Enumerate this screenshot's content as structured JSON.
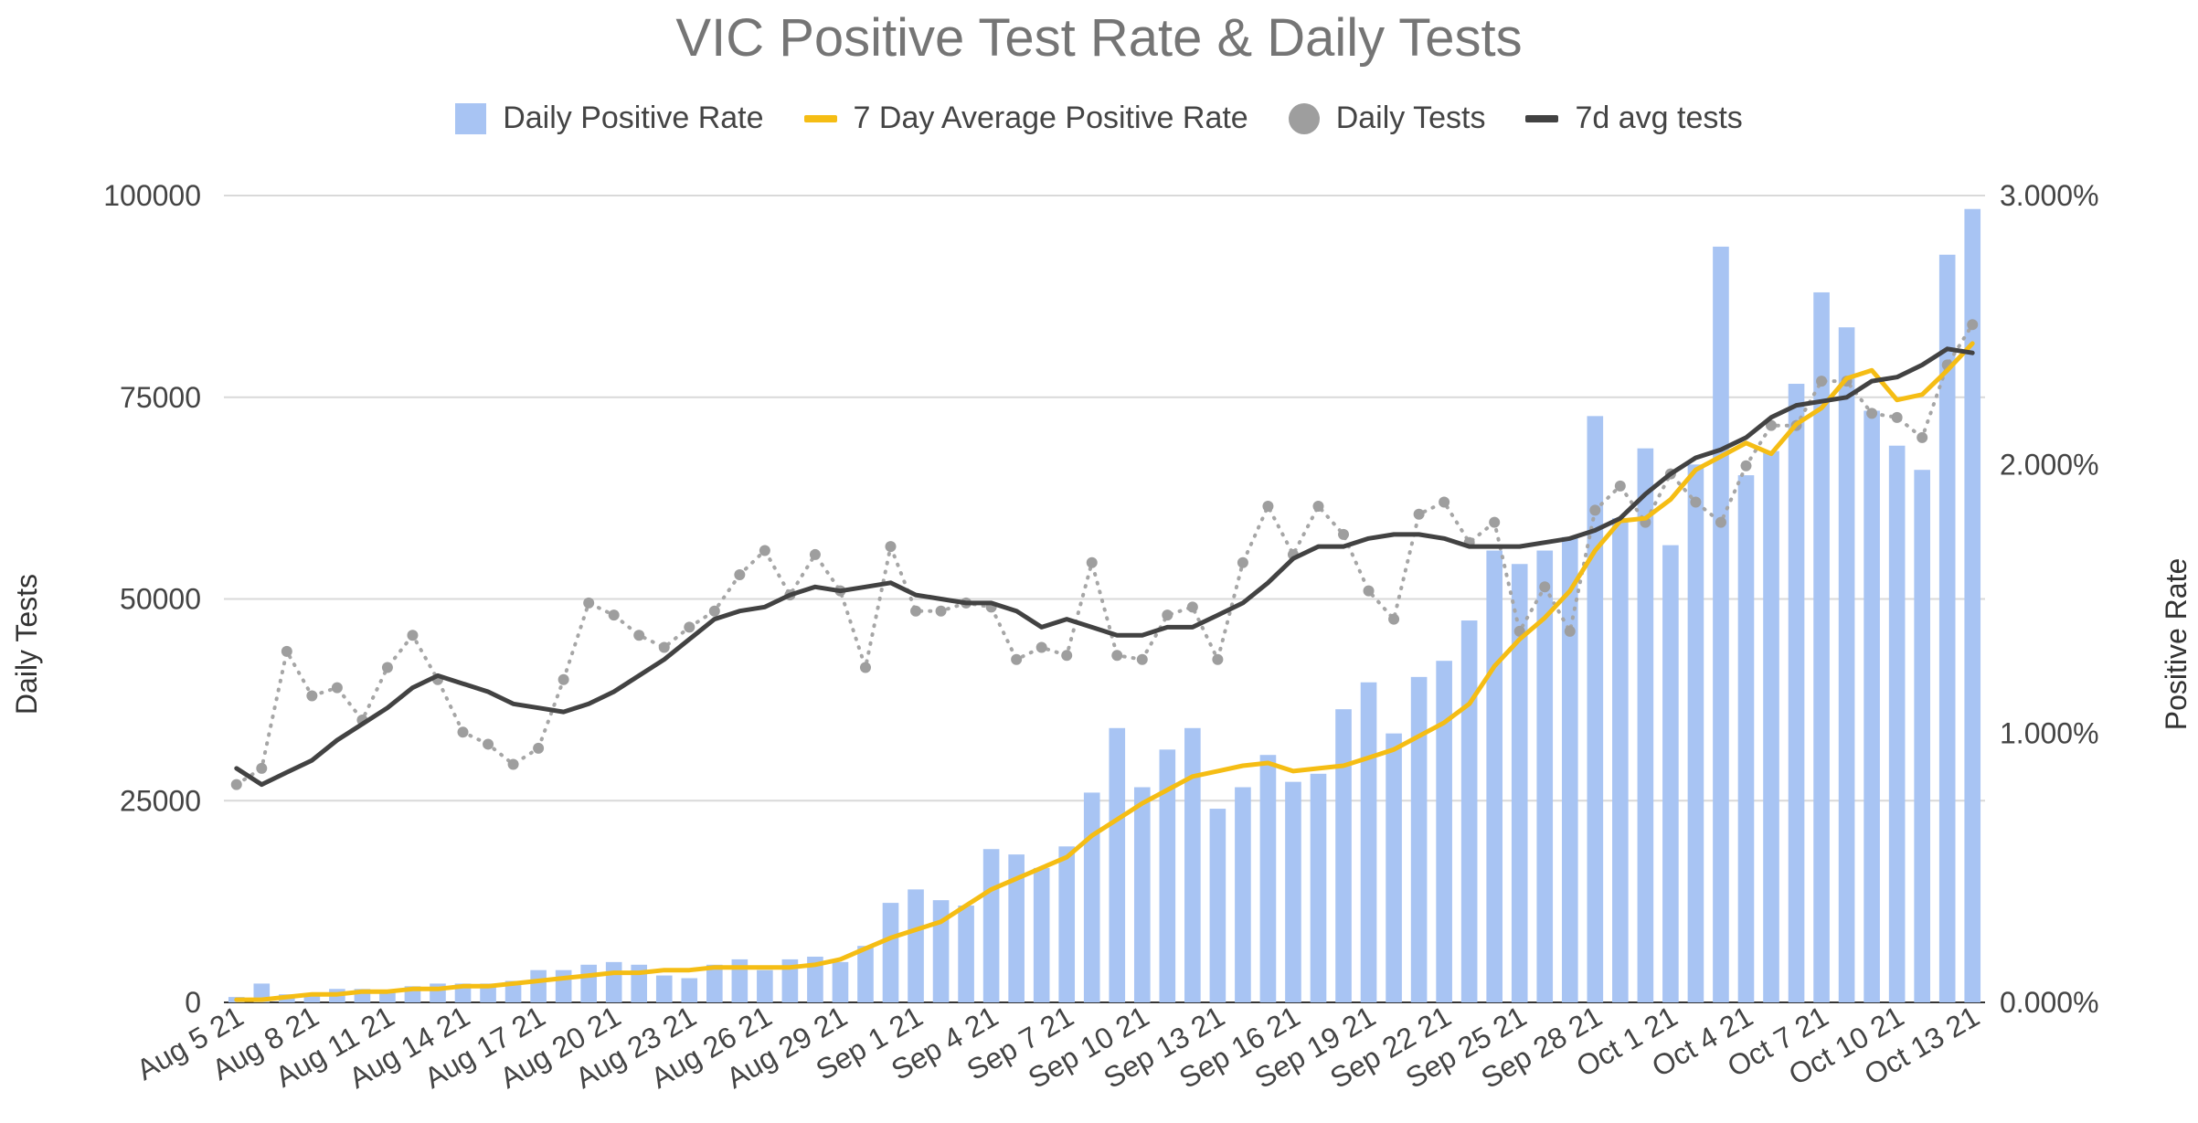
{
  "chart_data": {
    "type": "bar",
    "title": "VIC Positive Test Rate & Daily Tests",
    "ylabel_left": "Daily Tests",
    "ylabel_right": "Positive Rate",
    "ylim_left": [
      0,
      100000
    ],
    "ylim_right": [
      0,
      3
    ],
    "left_ticks": [
      "0",
      "25000",
      "50000",
      "75000",
      "100000"
    ],
    "right_ticks": [
      "0.000%",
      "1.000%",
      "2.000%",
      "3.000%"
    ],
    "x_tick_labels": [
      "Aug 5 21",
      "Aug 8 21",
      "Aug 11 21",
      "Aug 14 21",
      "Aug 17 21",
      "Aug 20 21",
      "Aug 23 21",
      "Aug 26 21",
      "Aug 29 21",
      "Sep 1 21",
      "Sep 4 21",
      "Sep 7 21",
      "Sep 10 21",
      "Sep 13 21",
      "Sep 16 21",
      "Sep 19 21",
      "Sep 22 21",
      "Sep 25 21",
      "Sep 28 21",
      "Oct 1 21",
      "Oct 4 21",
      "Oct 7 21",
      "Oct 10 21",
      "Oct 13 21"
    ],
    "grid": true,
    "legend_position": "top",
    "colors": {
      "bars": "#a8c4f3",
      "avg_rate": "#f5bd14",
      "daily_tests": "#a6a6a6",
      "avg_tests": "#424242",
      "grid": "#d9d9d9",
      "title": "#757575"
    },
    "series": [
      {
        "name": "Daily Positive Rate",
        "type": "bar",
        "axis": "right",
        "values": [
          0.02,
          0.07,
          0.03,
          0.03,
          0.05,
          0.05,
          0.04,
          0.06,
          0.07,
          0.07,
          0.07,
          0.08,
          0.12,
          0.12,
          0.14,
          0.15,
          0.14,
          0.1,
          0.09,
          0.14,
          0.16,
          0.12,
          0.16,
          0.17,
          0.15,
          0.21,
          0.37,
          0.42,
          0.38,
          0.36,
          0.57,
          0.55,
          0.5,
          0.58,
          0.78,
          1.02,
          0.8,
          0.94,
          1.02,
          0.72,
          0.8,
          0.92,
          0.82,
          0.85,
          1.09,
          1.19,
          1.0,
          1.21,
          1.27,
          1.42,
          1.68,
          1.63,
          1.68,
          1.73,
          2.18,
          1.8,
          2.06,
          1.7,
          2.0,
          2.81,
          1.96,
          2.05,
          2.3,
          2.64,
          2.51,
          2.2,
          2.07,
          1.98,
          2.78,
          2.95
        ]
      },
      {
        "name": "7 Day Average Positive Rate",
        "type": "line",
        "axis": "right",
        "values": [
          0.01,
          0.01,
          0.02,
          0.03,
          0.03,
          0.04,
          0.04,
          0.05,
          0.05,
          0.06,
          0.06,
          0.07,
          0.08,
          0.09,
          0.1,
          0.11,
          0.11,
          0.12,
          0.12,
          0.13,
          0.13,
          0.13,
          0.13,
          0.14,
          0.16,
          0.2,
          0.24,
          0.27,
          0.3,
          0.36,
          0.42,
          0.46,
          0.5,
          0.54,
          0.62,
          0.68,
          0.74,
          0.79,
          0.84,
          0.86,
          0.88,
          0.89,
          0.86,
          0.87,
          0.88,
          0.91,
          0.94,
          0.99,
          1.04,
          1.11,
          1.25,
          1.35,
          1.43,
          1.53,
          1.68,
          1.79,
          1.8,
          1.87,
          1.98,
          2.03,
          2.08,
          2.04,
          2.15,
          2.21,
          2.32,
          2.35,
          2.24,
          2.26,
          2.35,
          2.45
        ]
      },
      {
        "name": "Daily Tests",
        "type": "dotted-line",
        "axis": "left",
        "values": [
          27000,
          29000,
          43500,
          38000,
          39000,
          35000,
          41500,
          45500,
          40000,
          33500,
          32000,
          29500,
          31500,
          40000,
          49500,
          48000,
          45500,
          44000,
          46500,
          48500,
          53000,
          56000,
          50500,
          55500,
          51000,
          41500,
          56500,
          48500,
          48500,
          49500,
          49000,
          42500,
          44000,
          43000,
          54500,
          43000,
          42500,
          48000,
          49000,
          42500,
          54500,
          61500,
          55500,
          61500,
          58000,
          51000,
          47500,
          60500,
          62000,
          57000,
          59500,
          46000,
          51500,
          46000,
          61000,
          64000,
          59500,
          65500,
          62000,
          59500,
          66500,
          71500,
          71500,
          77000,
          77000,
          73000,
          72500,
          70000,
          79000,
          84000
        ]
      },
      {
        "name": "7d avg tests",
        "type": "line",
        "axis": "left",
        "values": [
          29000,
          27000,
          28500,
          30000,
          32500,
          34500,
          36500,
          39000,
          40500,
          39500,
          38500,
          37000,
          36500,
          36000,
          37000,
          38500,
          40500,
          42500,
          45000,
          47500,
          48500,
          49000,
          50500,
          51500,
          51000,
          51500,
          52000,
          50500,
          50000,
          49500,
          49500,
          48500,
          46500,
          47500,
          46500,
          45500,
          45500,
          46500,
          46500,
          48000,
          49500,
          52000,
          55000,
          56500,
          56500,
          57500,
          58000,
          58000,
          57500,
          56500,
          56500,
          56500,
          57000,
          57500,
          58500,
          60000,
          63000,
          65500,
          67500,
          68500,
          70000,
          72500,
          74000,
          74500,
          75000,
          77000,
          77500,
          79000,
          81000,
          80500
        ]
      }
    ]
  }
}
